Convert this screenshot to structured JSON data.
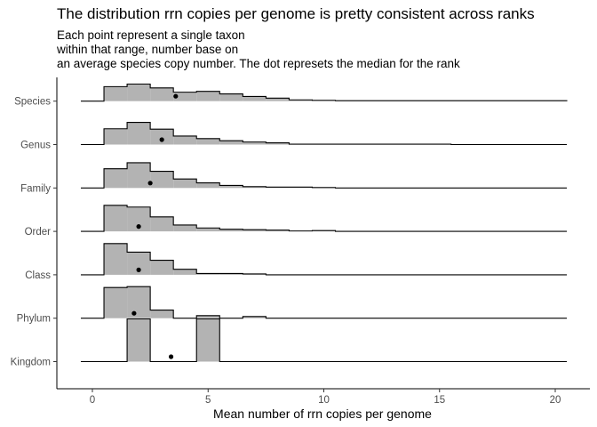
{
  "chart_data": {
    "type": "ridgeline-histogram",
    "title": "The distribution rrn copies per genome is pretty consistent across ranks",
    "subtitle": [
      "Each point represent a single taxon",
      "within that range, number base on",
      "an average species copy number. The dot represets the median for the rank"
    ],
    "xlabel": "Mean number of rrn copies per genome",
    "ylabel": "",
    "xlim": [
      -1.5,
      21.5
    ],
    "xticks": [
      0,
      5,
      10,
      15,
      20
    ],
    "xtick_labels": [
      "0",
      "5",
      "10",
      "15",
      "20"
    ],
    "bin_edges": [
      -0.5,
      0.5,
      1.5,
      2.5,
      3.5,
      4.5,
      5.5,
      6.5,
      7.5,
      8.5,
      9.5,
      10.5,
      11.5,
      12.5,
      13.5,
      14.5,
      15.5,
      16.5,
      17.5,
      18.5,
      19.5,
      20.5
    ],
    "grid": false,
    "fill_color": "#b3b3b3",
    "line_color": "#000000",
    "categories": [
      "Kingdom",
      "Phylum",
      "Class",
      "Order",
      "Family",
      "Genus",
      "Species"
    ],
    "series": [
      {
        "name": "Kingdom",
        "values": [
          0,
          0,
          1.0,
          0,
          0,
          1.0,
          0,
          0,
          0,
          0,
          0,
          0,
          0,
          0,
          0,
          0,
          0,
          0,
          0,
          0,
          0
        ],
        "median": 3.4
      },
      {
        "name": "Phylum",
        "values": [
          0,
          0.72,
          0.74,
          0.19,
          0,
          0.06,
          0,
          0.04,
          0,
          0,
          0,
          0,
          0,
          0,
          0,
          0,
          0,
          0,
          0,
          0,
          0
        ],
        "median": 1.8
      },
      {
        "name": "Class",
        "values": [
          0,
          0.73,
          0.53,
          0.34,
          0.13,
          0.03,
          0.03,
          0.02,
          0,
          0,
          0,
          0,
          0,
          0,
          0,
          0,
          0,
          0,
          0,
          0,
          0
        ],
        "median": 2.0
      },
      {
        "name": "Order",
        "values": [
          0,
          0.61,
          0.57,
          0.34,
          0.15,
          0.08,
          0.05,
          0.04,
          0.03,
          0.01,
          0.02,
          0,
          0,
          0,
          0,
          0,
          0,
          0,
          0,
          0,
          0
        ],
        "median": 2.0
      },
      {
        "name": "Family",
        "values": [
          0,
          0.45,
          0.59,
          0.39,
          0.21,
          0.12,
          0.06,
          0.03,
          0.02,
          0.02,
          0.01,
          0,
          0,
          0,
          0,
          0,
          0,
          0,
          0,
          0,
          0
        ],
        "median": 2.5
      },
      {
        "name": "Genus",
        "values": [
          0,
          0.37,
          0.52,
          0.36,
          0.2,
          0.14,
          0.09,
          0.06,
          0.04,
          0.01,
          0.01,
          0.01,
          0.01,
          0.01,
          0.01,
          0.01,
          0,
          0,
          0,
          0,
          0
        ],
        "median": 3.0
      },
      {
        "name": "Species",
        "values": [
          0,
          0.34,
          0.4,
          0.31,
          0.21,
          0.23,
          0.17,
          0.11,
          0.07,
          0.03,
          0.02,
          0.01,
          0.01,
          0.01,
          0.01,
          0.01,
          0.01,
          0.01,
          0.01,
          0.01,
          0.01
        ],
        "median": 3.6
      }
    ]
  }
}
